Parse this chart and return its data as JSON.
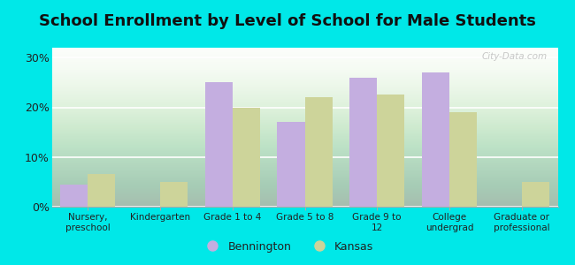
{
  "title": "School Enrollment by Level of School for Male Students",
  "categories": [
    "Nursery,\npreschool",
    "Kindergarten",
    "Grade 1 to 4",
    "Grade 5 to 8",
    "Grade 9 to\n12",
    "College\nundergrad",
    "Graduate or\nprofessional"
  ],
  "bennington": [
    4.5,
    0.0,
    25.0,
    17.0,
    26.0,
    27.0,
    0.0
  ],
  "kansas": [
    6.5,
    5.0,
    20.0,
    22.0,
    22.5,
    19.0,
    5.0
  ],
  "bennington_color": "#c4aee0",
  "kansas_color": "#cdd49a",
  "background_color": "#00e8e8",
  "ylabel_ticks": [
    "0%",
    "10%",
    "20%",
    "30%"
  ],
  "yticks": [
    0,
    10,
    20,
    30
  ],
  "ylim": [
    0,
    32
  ],
  "bar_width": 0.38,
  "title_fontsize": 13,
  "legend_labels": [
    "Bennington",
    "Kansas"
  ],
  "watermark": "City-Data.com"
}
